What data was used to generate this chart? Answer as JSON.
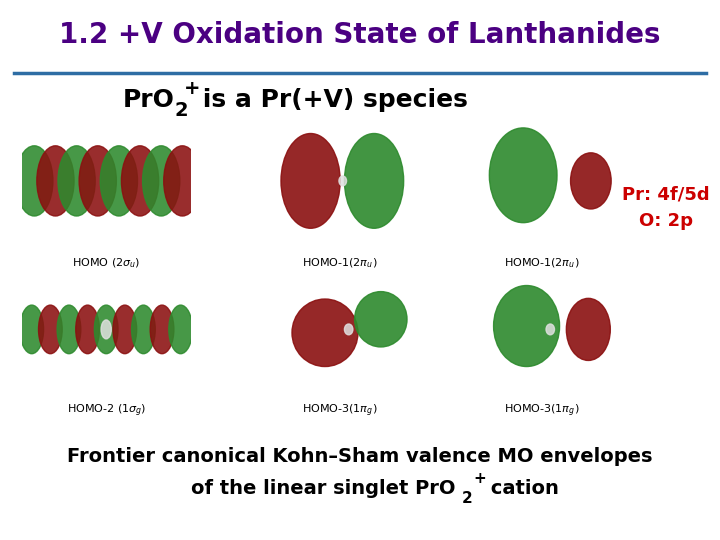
{
  "title": "1.2 +V Oxidation State of Lanthanides",
  "title_color": "#4B0082",
  "title_fontsize": 20,
  "subtitle_fontsize": 18,
  "bg_color": "#ffffff",
  "separator_color": "#2E6DA4",
  "label_fontsize": 8,
  "label_color": "#000000",
  "pr_label": "Pr: 4f/5d\nO: 2p",
  "pr_label_color": "#cc0000",
  "pr_label_fontsize": 13,
  "footer_line1": "Frontier canonical Kohn–Sham valence MO envelopes",
  "footer_fontsize": 14,
  "footer_color": "#000000",
  "green": "#2d8a2d",
  "dark_red": "#8b1010",
  "white_atom": "#e0e0e0"
}
